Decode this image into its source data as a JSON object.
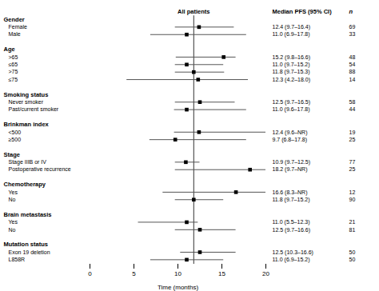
{
  "chart_data": {
    "type": "forest",
    "xlabel": "Time (months)",
    "xlim": [
      0,
      20
    ],
    "xticks": [
      0,
      5,
      10,
      15,
      20
    ],
    "reference_line": {
      "value": 11.8,
      "label": "All patients",
      "color": "#333333"
    },
    "columns": [
      "Median PFS (95% CI)",
      "n"
    ],
    "color": "#000000",
    "ci_color": "#555555",
    "rows": [
      {
        "label": "Gender",
        "header": true
      },
      {
        "label": "Female",
        "median": 12.4,
        "ci_low": 9.7,
        "ci_high": 16.4,
        "value_label": "12.4 (9.7–16.4)",
        "n": 69
      },
      {
        "label": "Male",
        "median": 11.0,
        "ci_low": 6.9,
        "ci_high": 17.8,
        "value_label": "11.0 (6.9–17.8)",
        "n": 33
      },
      null,
      {
        "label": "Age",
        "header": true
      },
      {
        "label": ">65",
        "median": 15.2,
        "ci_low": 9.8,
        "ci_high": 16.6,
        "value_label": "15.2 (9.8–16.6)",
        "n": 48
      },
      {
        "label": "≤65",
        "median": 11.0,
        "ci_low": 9.7,
        "ci_high": 15.2,
        "value_label": "11.0 (9.7–15.2)",
        "n": 54
      },
      {
        "label": ">75",
        "median": 11.8,
        "ci_low": 9.7,
        "ci_high": 15.3,
        "value_label": "11.8 (9.7–15.3)",
        "n": 88
      },
      {
        "label": "≤75",
        "median": 12.3,
        "ci_low": 4.2,
        "ci_high": 18.0,
        "value_label": "12.3 (4.2–18.0)",
        "n": 14
      },
      null,
      {
        "label": "Smoking status",
        "header": true
      },
      {
        "label": "Never smoker",
        "median": 12.5,
        "ci_low": 9.7,
        "ci_high": 16.5,
        "value_label": "12.5 (9.7–16.5)",
        "n": 58
      },
      {
        "label": "Past/current smoker",
        "median": 11.0,
        "ci_low": 9.6,
        "ci_high": 17.8,
        "value_label": "11.0 (9.6–17.8)",
        "n": 44
      },
      null,
      {
        "label": "Brinkman index",
        "header": true
      },
      {
        "label": "<500",
        "median": 12.4,
        "ci_low": 9.6,
        "ci_high": 20.0,
        "value_label": "12.4 (9.6–NR)",
        "n": 19
      },
      {
        "label": "≥500",
        "median": 9.7,
        "ci_low": 6.8,
        "ci_high": 17.8,
        "value_label": "9.7 (6.8–17.8)",
        "n": 25
      },
      null,
      {
        "label": "Stage",
        "header": true
      },
      {
        "label": "Stage IIIB or IV",
        "median": 10.9,
        "ci_low": 9.7,
        "ci_high": 12.5,
        "value_label": "10.9 (9.7–12.5)",
        "n": 77
      },
      {
        "label": "Postoperative recurrence",
        "median": 18.2,
        "ci_low": 9.7,
        "ci_high": 20.0,
        "value_label": "18.2 (9.7–NR)",
        "n": 25
      },
      null,
      {
        "label": "Chemotherapy",
        "header": true
      },
      {
        "label": "Yes",
        "median": 16.6,
        "ci_low": 8.3,
        "ci_high": 20.0,
        "value_label": "16.6 (8.3–NR)",
        "n": 12
      },
      {
        "label": "No",
        "median": 11.8,
        "ci_low": 9.7,
        "ci_high": 15.2,
        "value_label": "11.8 (9.7–15.2)",
        "n": 90
      },
      null,
      {
        "label": "Brain metastasis",
        "header": true
      },
      {
        "label": "Yes",
        "median": 11.0,
        "ci_low": 5.5,
        "ci_high": 12.3,
        "value_label": "11.0 (5.5–12.3)",
        "n": 21
      },
      {
        "label": "No",
        "median": 12.5,
        "ci_low": 9.7,
        "ci_high": 16.6,
        "value_label": "12.5 (9.7–16.6)",
        "n": 81
      },
      null,
      {
        "label": "Mutation status",
        "header": true
      },
      {
        "label": "Exon 19 deletion",
        "median": 12.5,
        "ci_low": 10.3,
        "ci_high": 16.6,
        "value_label": "12.5 (10.3–16.6)",
        "n": 50
      },
      {
        "label": "L858R",
        "median": 11.0,
        "ci_low": 6.9,
        "ci_high": 15.2,
        "value_label": "11.0 (6.9–15.2)",
        "n": 50
      }
    ]
  }
}
